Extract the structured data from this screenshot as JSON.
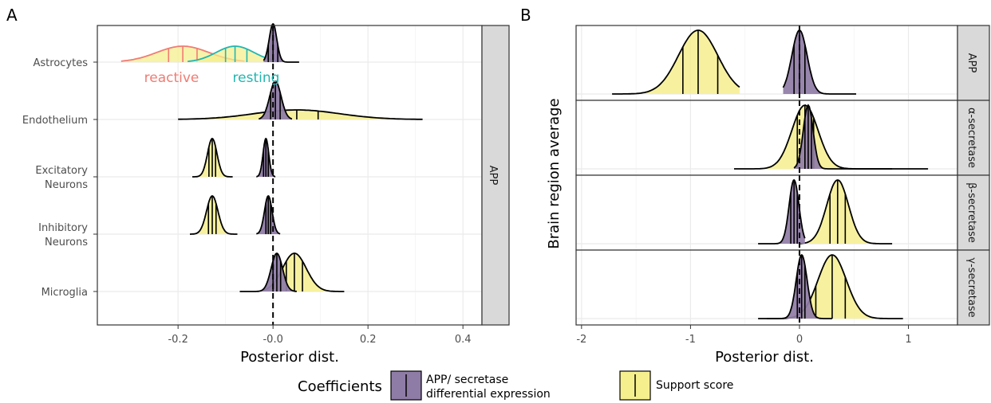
{
  "colors": {
    "purple": "#8f7ca6",
    "yellow": "#f6ef8e",
    "olive": "#968a4f",
    "reactive": "#f07c73",
    "resting": "#22b6b0",
    "strip": "#d9d9d9",
    "grid": "#ebebeb"
  },
  "legend": {
    "title": "Coefficients",
    "items": [
      {
        "key": "expr",
        "label_line1": "APP/ secretase",
        "label_line2": "differential expression",
        "color": "#8f7ca6"
      },
      {
        "key": "support",
        "label_line1": "Support score",
        "label_line2": "",
        "color": "#f6ef8e"
      }
    ]
  },
  "chart_data": [
    {
      "panel_label": "A",
      "type": "ridgeline",
      "facet_label": "APP",
      "xlabel": "Posterior dist.",
      "ylabel": "",
      "xlim": [
        -0.37,
        0.44
      ],
      "xticks": [
        -0.2,
        -0.0,
        0.2,
        0.4
      ],
      "xtick_labels": [
        "-0.2",
        "-0.0",
        "0.2",
        "0.4"
      ],
      "reference_line_x": 0,
      "categories": [
        "Astrocytes",
        "Endothelium",
        "Excitatory\nNeurons",
        "Inhibitory\nNeurons",
        "Microglia"
      ],
      "annotations": [
        {
          "text": "reactive",
          "color": "#f07c73"
        },
        {
          "text": "resting",
          "color": "#22b6b0"
        }
      ],
      "rows": [
        {
          "category": "Astrocytes",
          "series": [
            {
              "name": "APP/ secretase differential expression",
              "mean": 0.0,
              "sd": 0.008,
              "range": [
                -0.02,
                0.055
              ],
              "quantiles": [
                -0.01,
                0.0,
                0.01
              ]
            },
            {
              "name": "reactive",
              "mean": -0.19,
              "sd": 0.055,
              "range": [
                -0.32,
                -0.06
              ],
              "quantiles": [
                -0.22,
                -0.19,
                -0.16
              ]
            },
            {
              "name": "resting",
              "mean": -0.08,
              "sd": 0.04,
              "range": [
                -0.18,
                0.02
              ],
              "quantiles": [
                -0.1,
                -0.08,
                -0.055
              ]
            }
          ]
        },
        {
          "category": "Endothelium",
          "series": [
            {
              "name": "APP/ secretase differential expression",
              "mean": 0.005,
              "sd": 0.012,
              "range": [
                -0.03,
                0.04
              ],
              "quantiles": [
                -0.005,
                0.005,
                0.015
              ]
            },
            {
              "name": "Support score",
              "mean": 0.05,
              "sd": 0.09,
              "range": [
                -0.2,
                0.315
              ],
              "quantiles": [
                0.01,
                0.05,
                0.095
              ]
            }
          ]
        },
        {
          "category": "Excitatory\nNeurons",
          "series": [
            {
              "name": "APP/ secretase differential expression",
              "mean": -0.015,
              "sd": 0.006,
              "range": [
                -0.035,
                0.005
              ],
              "quantiles": [
                -0.02,
                -0.015,
                -0.01
              ]
            },
            {
              "name": "Support score",
              "mean": -0.128,
              "sd": 0.01,
              "range": [
                -0.17,
                -0.085
              ],
              "quantiles": [
                -0.135,
                -0.128,
                -0.121
              ]
            }
          ]
        },
        {
          "category": "Inhibitory\nNeurons",
          "series": [
            {
              "name": "APP/ secretase differential expression",
              "mean": -0.01,
              "sd": 0.008,
              "range": [
                -0.035,
                0.015
              ],
              "quantiles": [
                -0.015,
                -0.01,
                -0.005
              ]
            },
            {
              "name": "Support score",
              "mean": -0.128,
              "sd": 0.012,
              "range": [
                -0.175,
                -0.075
              ],
              "quantiles": [
                -0.136,
                -0.128,
                -0.12
              ]
            }
          ]
        },
        {
          "category": "Microglia",
          "series": [
            {
              "name": "APP/ secretase differential expression",
              "mean": 0.008,
              "sd": 0.012,
              "range": [
                -0.07,
                0.05
              ],
              "quantiles": [
                0.0,
                0.008,
                0.016
              ]
            },
            {
              "name": "Support score",
              "mean": 0.045,
              "sd": 0.025,
              "range": [
                -0.02,
                0.15
              ],
              "quantiles": [
                0.028,
                0.045,
                0.062
              ]
            }
          ]
        }
      ]
    },
    {
      "panel_label": "B",
      "type": "ridgeline",
      "xlabel": "Posterior dist.",
      "ylabel": "Brain region average",
      "xlim": [
        -2.05,
        1.45
      ],
      "xticks": [
        -2,
        -1,
        0,
        1
      ],
      "xtick_labels": [
        "-2",
        "-1",
        "0",
        "1"
      ],
      "reference_line_x": 0,
      "facets": [
        {
          "label": "APP",
          "series": [
            {
              "name": "APP/ secretase differential expression",
              "mean": 0.0,
              "sd": 0.07,
              "range": [
                -0.15,
                0.52
              ],
              "quantiles": [
                -0.05,
                0.0,
                0.05
              ]
            },
            {
              "name": "Support score",
              "mean": -0.93,
              "sd": 0.18,
              "range": [
                -1.72,
                -0.55
              ],
              "quantiles": [
                -1.07,
                -0.93,
                -0.75
              ]
            }
          ]
        },
        {
          "label": "α-secretase",
          "series": [
            {
              "name": "APP/ secretase differential expression",
              "mean": 0.08,
              "sd": 0.045,
              "range": [
                -0.05,
                0.85
              ],
              "quantiles": [
                0.05,
                0.08,
                0.11
              ]
            },
            {
              "name": "Support score",
              "mean": 0.05,
              "sd": 0.12,
              "range": [
                -0.6,
                1.18
              ],
              "quantiles": [
                -0.02,
                0.05,
                0.13
              ]
            }
          ]
        },
        {
          "label": "β-secretase",
          "series": [
            {
              "name": "APP/ secretase differential expression",
              "mean": -0.05,
              "sd": 0.045,
              "range": [
                -0.38,
                0.05
              ],
              "quantiles": [
                -0.08,
                -0.05,
                -0.02
              ]
            },
            {
              "name": "Support score",
              "mean": 0.35,
              "sd": 0.1,
              "range": [
                0.0,
                0.85
              ],
              "quantiles": [
                0.28,
                0.35,
                0.42
              ]
            }
          ]
        },
        {
          "label": "γ-secretase",
          "series": [
            {
              "name": "APP/ secretase differential expression",
              "mean": 0.02,
              "sd": 0.05,
              "range": [
                -0.38,
                0.3
              ],
              "quantiles": [
                -0.02,
                0.02,
                0.05
              ]
            },
            {
              "name": "Support score",
              "mean": 0.3,
              "sd": 0.13,
              "range": [
                -0.3,
                0.95
              ],
              "quantiles": [
                0.15,
                0.3,
                0.42
              ]
            }
          ]
        }
      ]
    }
  ]
}
